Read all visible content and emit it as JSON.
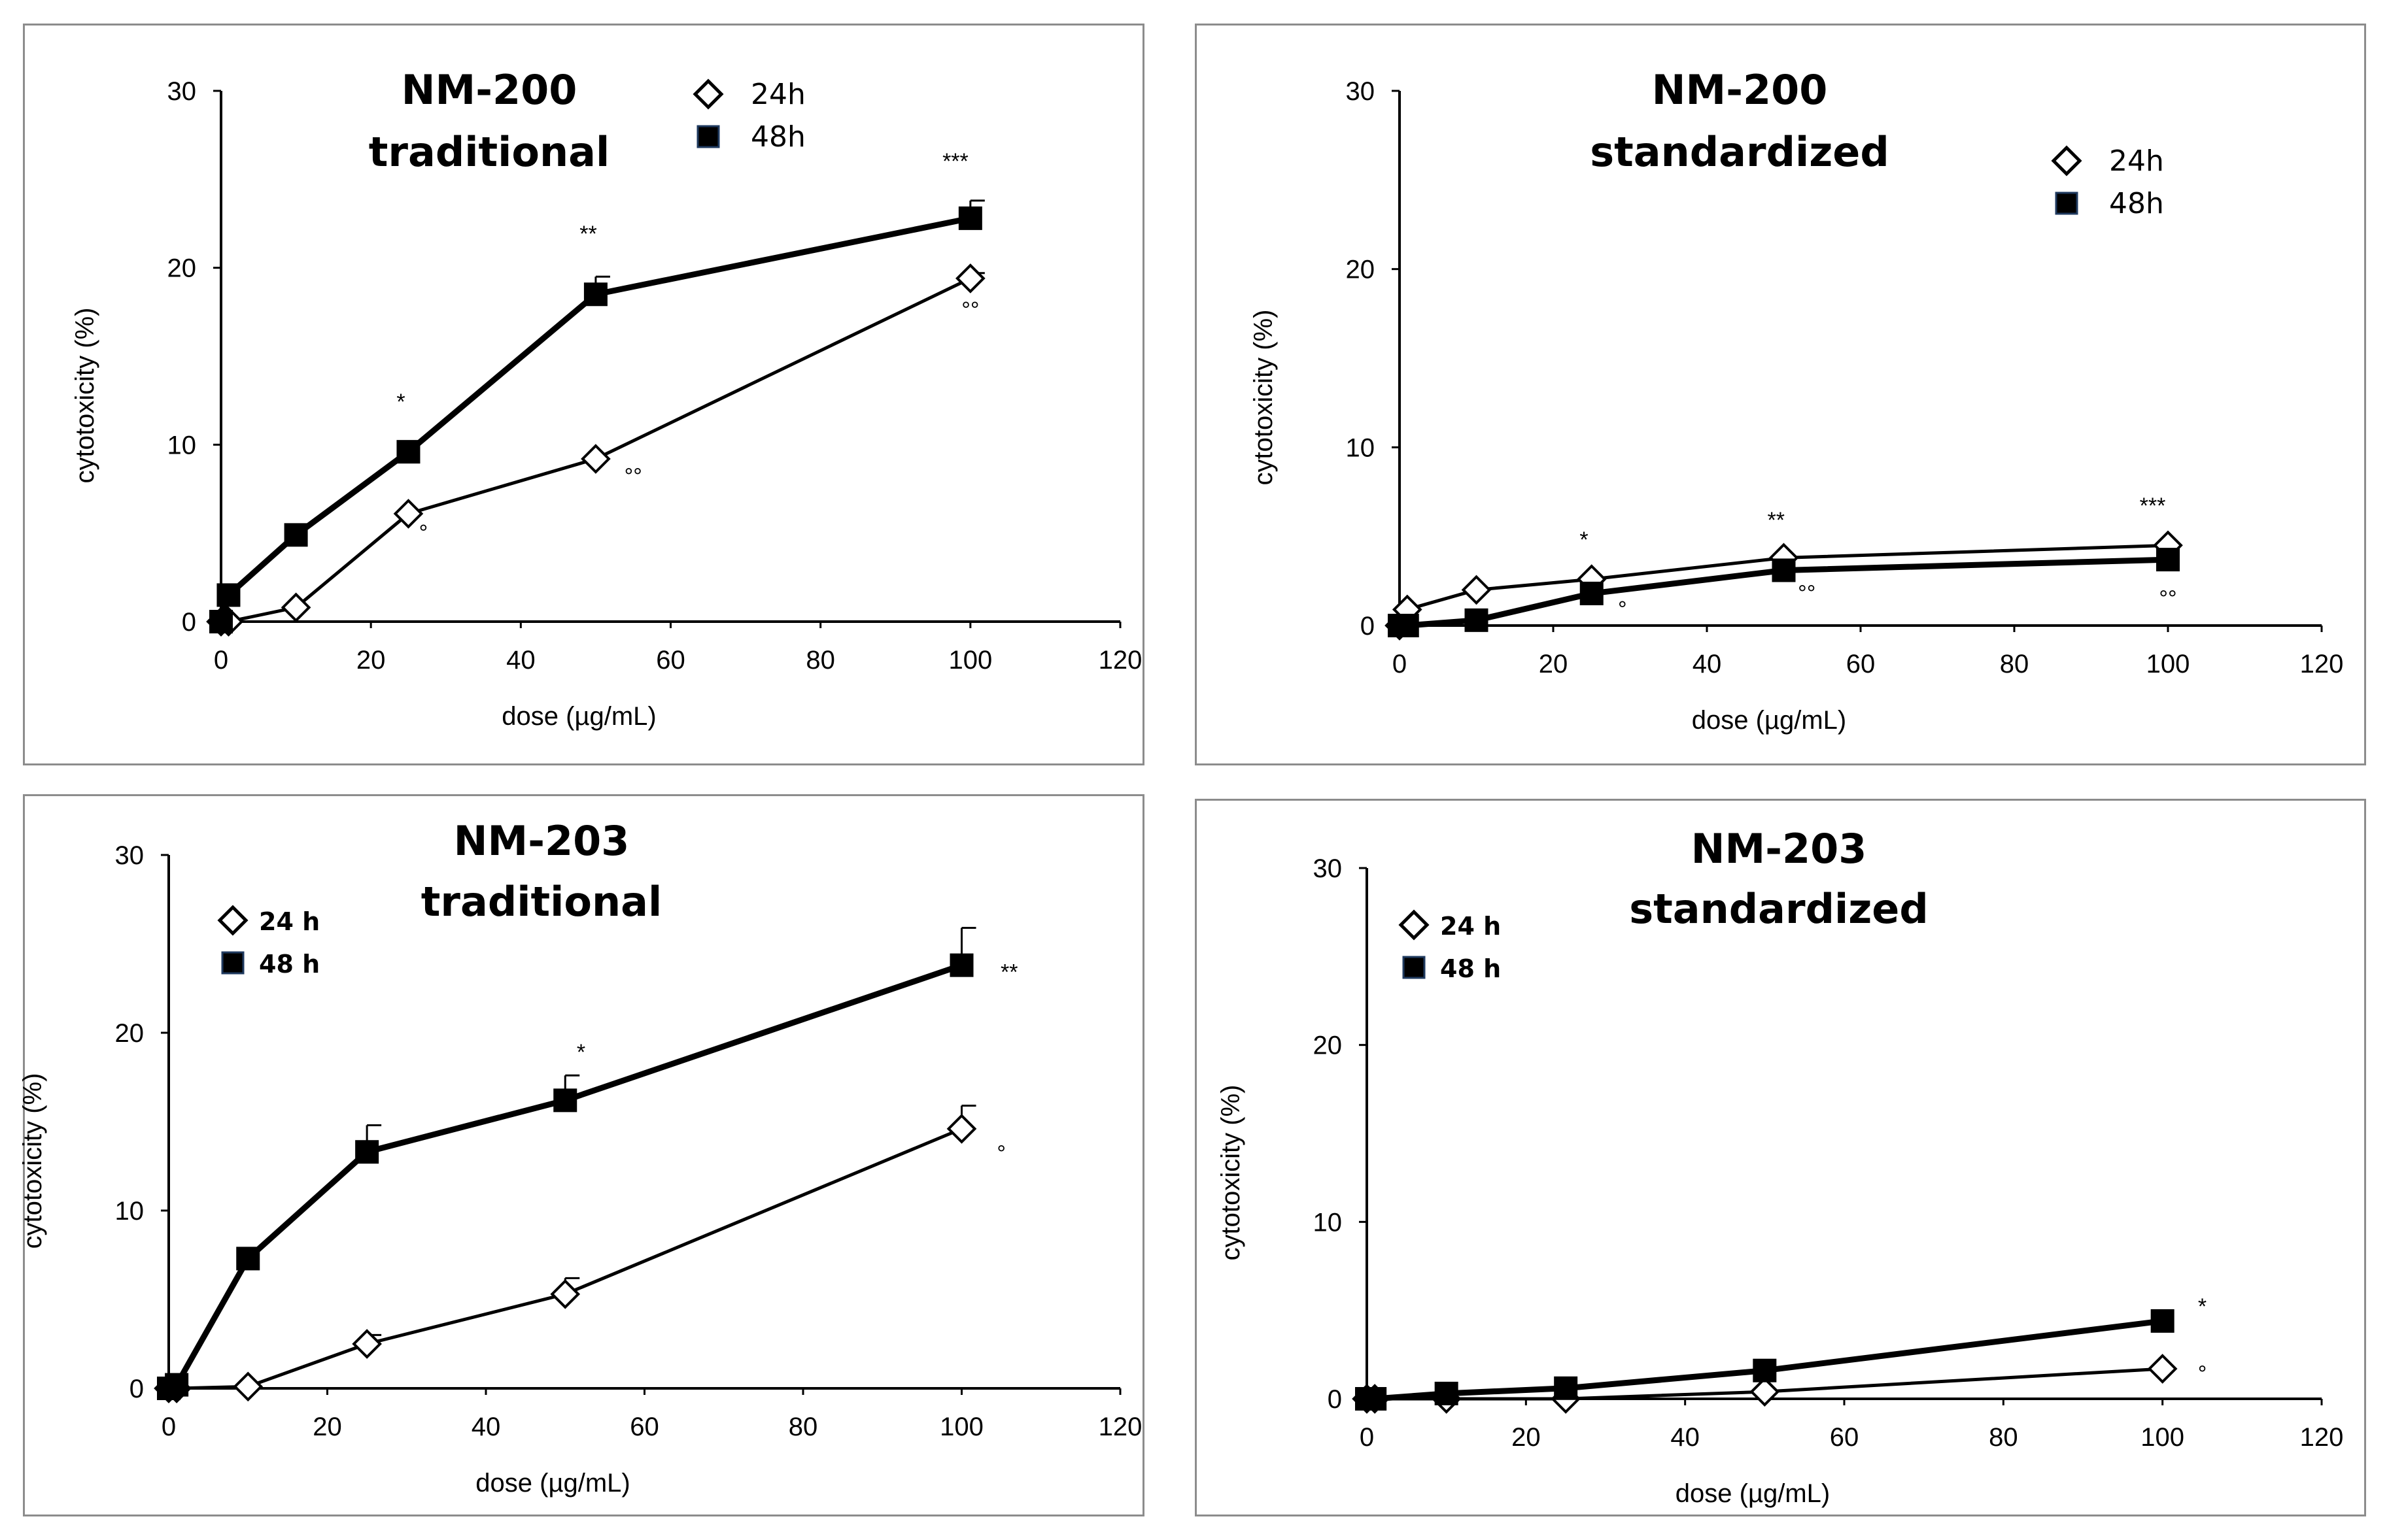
{
  "chart_data": [
    {
      "type": "line",
      "title": [
        "NM-200",
        "traditional"
      ],
      "xlabel": "dose (µg/mL)",
      "ylabel": "cytotoxicity (%)",
      "xlim": [
        0,
        120
      ],
      "ylim": [
        0,
        30
      ],
      "xticks": [
        "0",
        "20",
        "40",
        "60",
        "80",
        "100",
        "120"
      ],
      "yticks": [
        "0",
        "10",
        "20",
        "30"
      ],
      "legend_style": "plain",
      "legend_position": "top-center",
      "series": [
        {
          "name": "24h",
          "marker": "diamond",
          "x": [
            0,
            1,
            10,
            25,
            50,
            100
          ],
          "y": [
            0,
            0,
            0.8,
            6.1,
            9.2,
            19.4
          ],
          "err": [
            0,
            0,
            0,
            0,
            0,
            0.3
          ]
        },
        {
          "name": "48h",
          "marker": "square",
          "x": [
            0,
            1,
            10,
            25,
            50,
            100
          ],
          "y": [
            0,
            1.5,
            4.9,
            9.6,
            18.5,
            22.8
          ],
          "err": [
            0,
            0,
            0,
            0,
            1.0,
            1.0
          ]
        }
      ],
      "annotations": [
        {
          "text": "*",
          "x": 24,
          "y": 12
        },
        {
          "text": "**",
          "x": 49,
          "y": 21.5
        },
        {
          "text": "***",
          "x": 98,
          "y": 25.6
        },
        {
          "text": "°",
          "x": 27,
          "y": 4.6
        },
        {
          "text": "°°",
          "x": 55,
          "y": 7.8
        },
        {
          "text": "°°",
          "x": 100,
          "y": 17.2
        }
      ]
    },
    {
      "type": "line",
      "title": [
        "NM-200",
        "standardized"
      ],
      "xlabel": "dose (µg/mL)",
      "ylabel": "cytotoxicity (%)",
      "xlim": [
        0,
        120
      ],
      "ylim": [
        0,
        30
      ],
      "xticks": [
        "0",
        "20",
        "40",
        "60",
        "80",
        "100",
        "120"
      ],
      "yticks": [
        "0",
        "10",
        "20",
        "30"
      ],
      "legend_style": "plain",
      "legend_position": "top-right",
      "series": [
        {
          "name": "24h",
          "marker": "diamond",
          "x": [
            0,
            1,
            10,
            25,
            50,
            100
          ],
          "y": [
            0,
            0.9,
            2.0,
            2.6,
            3.8,
            4.5
          ],
          "err": [
            0,
            0,
            0,
            0,
            0,
            0
          ]
        },
        {
          "name": "48h",
          "marker": "square",
          "x": [
            0,
            1,
            10,
            25,
            50,
            100
          ],
          "y": [
            0,
            0,
            0.3,
            1.8,
            3.1,
            3.7
          ],
          "err": [
            0,
            0,
            0,
            0,
            0,
            0
          ]
        }
      ],
      "annotations": [
        {
          "text": "*",
          "x": 24,
          "y": 4.4
        },
        {
          "text": "**",
          "x": 49,
          "y": 5.5
        },
        {
          "text": "***",
          "x": 98,
          "y": 6.3
        },
        {
          "text": "°",
          "x": 29,
          "y": 0.5
        },
        {
          "text": "°°",
          "x": 53,
          "y": 1.4
        },
        {
          "text": "°°",
          "x": 100,
          "y": 1.1
        }
      ]
    },
    {
      "type": "line",
      "title": [
        "NM-203",
        "traditional"
      ],
      "xlabel": "dose (µg/mL)",
      "ylabel": "cytotoxicity (%)",
      "xlim": [
        0,
        120
      ],
      "ylim": [
        0,
        30
      ],
      "xticks": [
        "0",
        "20",
        "40",
        "60",
        "80",
        "100",
        "120"
      ],
      "yticks": [
        "0",
        "10",
        "20",
        "30"
      ],
      "legend_style": "bold",
      "legend_position": "top-left",
      "series": [
        {
          "name": "24 h",
          "marker": "diamond",
          "x": [
            0,
            1,
            10,
            25,
            50,
            100
          ],
          "y": [
            0,
            0,
            0.1,
            2.5,
            5.3,
            14.6
          ],
          "err": [
            0,
            0,
            0,
            0.5,
            0.9,
            1.3
          ]
        },
        {
          "name": "48 h",
          "marker": "square",
          "x": [
            0,
            1,
            10,
            25,
            50,
            100
          ],
          "y": [
            0,
            0.2,
            7.3,
            13.3,
            16.2,
            23.8
          ],
          "err": [
            0,
            0,
            0,
            1.5,
            1.4,
            2.1
          ]
        }
      ],
      "annotations": [
        {
          "text": "**",
          "x": 106,
          "y": 23.0
        },
        {
          "text": "*",
          "x": 52,
          "y": 18.5
        },
        {
          "text": "°",
          "x": 105,
          "y": 12.8
        }
      ]
    },
    {
      "type": "line",
      "title": [
        "NM-203",
        "standardized"
      ],
      "xlabel": "dose (µg/mL)",
      "ylabel": "cytotoxicity (%)",
      "xlim": [
        0,
        120
      ],
      "ylim": [
        0,
        30
      ],
      "xticks": [
        "0",
        "20",
        "40",
        "60",
        "80",
        "100",
        "120"
      ],
      "yticks": [
        "0",
        "10",
        "20",
        "30"
      ],
      "legend_style": "bold",
      "legend_position": "top-left",
      "series": [
        {
          "name": "24 h",
          "marker": "diamond",
          "x": [
            0,
            1,
            10,
            25,
            50,
            100
          ],
          "y": [
            0,
            0,
            0,
            0,
            0.4,
            1.7
          ],
          "err": [
            0,
            0,
            0,
            0,
            0,
            0
          ]
        },
        {
          "name": "48 h",
          "marker": "square",
          "x": [
            0,
            1,
            10,
            25,
            50,
            100
          ],
          "y": [
            0,
            0,
            0.3,
            0.6,
            1.6,
            4.4
          ],
          "err": [
            0,
            0,
            0,
            0,
            0,
            0
          ]
        }
      ],
      "annotations": [
        {
          "text": "*",
          "x": 105,
          "y": 4.8
        },
        {
          "text": "°",
          "x": 105,
          "y": 1.0
        }
      ]
    }
  ]
}
